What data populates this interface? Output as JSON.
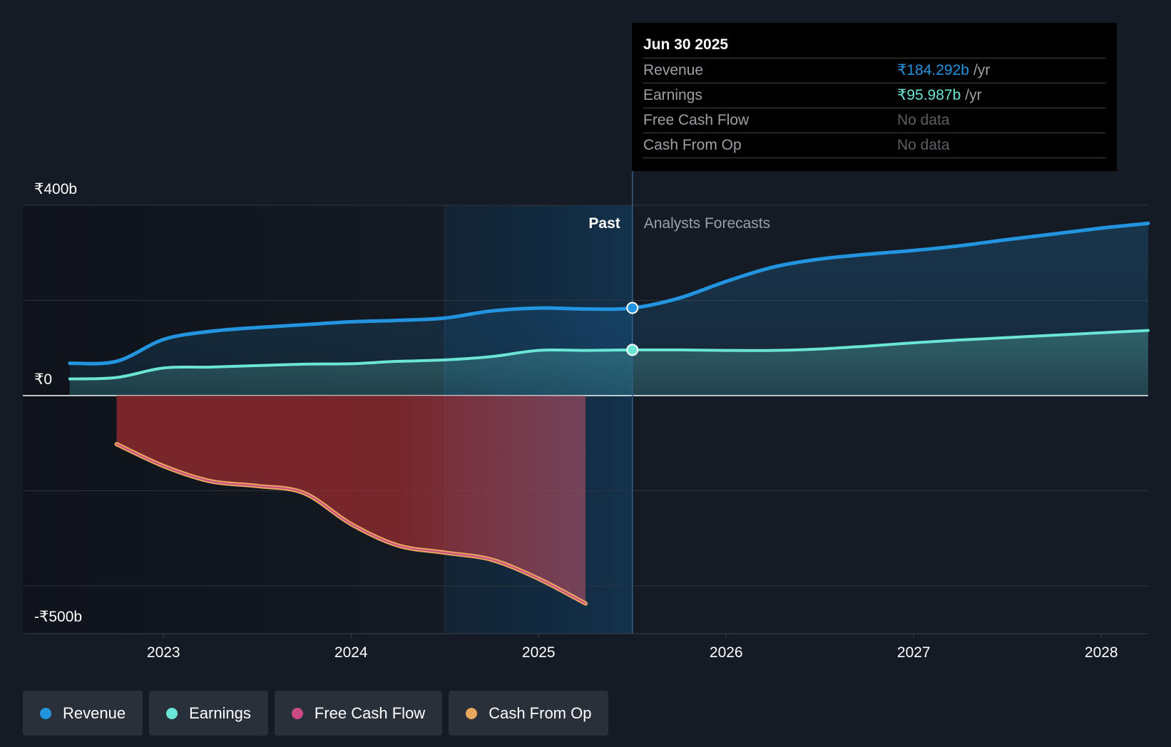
{
  "tooltip": {
    "date": "Jun 30 2025",
    "rows": [
      {
        "label": "Revenue",
        "value": "₹184.292b",
        "unit": "/yr",
        "color": "#2394df"
      },
      {
        "label": "Earnings",
        "value": "₹95.987b",
        "unit": "/yr",
        "color": "#6be6d6"
      },
      {
        "label": "Free Cash Flow",
        "value": "No data",
        "unit": "",
        "color": ""
      },
      {
        "label": "Cash From Op",
        "value": "No data",
        "unit": "",
        "color": ""
      }
    ]
  },
  "legend": [
    {
      "label": "Revenue",
      "color": "#2394df"
    },
    {
      "label": "Earnings",
      "color": "#6be6d6"
    },
    {
      "label": "Free Cash Flow",
      "color": "#c94a87"
    },
    {
      "label": "Cash From Op",
      "color": "#e8a75d"
    }
  ],
  "chart_data": {
    "type": "area",
    "title": "",
    "y_labels": {
      "top": "₹400b",
      "zero": "₹0",
      "bottom": "-₹500b"
    },
    "ylim": [
      -500,
      400
    ],
    "xlim": [
      2022.25,
      2028.25
    ],
    "x_ticks": [
      {
        "value": 2023,
        "label": "2023"
      },
      {
        "value": 2024,
        "label": "2024"
      },
      {
        "value": 2025,
        "label": "2025"
      },
      {
        "value": 2026,
        "label": "2026"
      },
      {
        "value": 2027,
        "label": "2027"
      },
      {
        "value": 2028,
        "label": "2028"
      }
    ],
    "gridlines": [
      400,
      200,
      0,
      -200,
      -400
    ],
    "highlight_start": 2024.5,
    "divider": 2025.5,
    "past_label": "Past",
    "forecast_label": "Analysts Forecasts",
    "series": [
      {
        "name": "Revenue",
        "color": "#2394df",
        "x": [
          2022.5,
          2022.75,
          2023.0,
          2023.25,
          2023.5,
          2023.75,
          2024.0,
          2024.25,
          2024.5,
          2024.75,
          2025.0,
          2025.25,
          2025.5,
          2025.75,
          2026.0,
          2026.25,
          2026.5,
          2026.75,
          2027.0,
          2027.25,
          2027.5,
          2027.75,
          2028.0,
          2028.25
        ],
        "y": [
          68,
          72,
          118,
          135,
          143,
          149,
          155,
          158,
          163,
          178,
          184,
          182,
          184,
          205,
          240,
          270,
          287,
          297,
          305,
          315,
          328,
          340,
          352,
          362
        ]
      },
      {
        "name": "Earnings",
        "color": "#6be6d6",
        "x": [
          2022.5,
          2022.75,
          2023.0,
          2023.25,
          2023.5,
          2023.75,
          2024.0,
          2024.25,
          2024.5,
          2024.75,
          2025.0,
          2025.25,
          2025.5,
          2025.75,
          2026.0,
          2026.25,
          2026.5,
          2026.75,
          2027.0,
          2027.25,
          2027.5,
          2027.75,
          2028.0,
          2028.25
        ],
        "y": [
          35,
          38,
          58,
          60,
          63,
          66,
          67,
          72,
          75,
          82,
          95,
          95,
          96,
          96,
          95,
          95,
          98,
          104,
          111,
          117,
          122,
          127,
          132,
          137
        ]
      },
      {
        "name": "Free Cash Flow",
        "color": "#c94a87",
        "x": [
          2022.75,
          2023.0,
          2023.25,
          2023.5,
          2023.75,
          2024.0,
          2024.25,
          2024.5,
          2024.75,
          2025.0,
          2025.25
        ],
        "y": [
          -102,
          -148,
          -180,
          -190,
          -205,
          -270,
          -315,
          -330,
          -345,
          -385,
          -437
        ]
      },
      {
        "name": "Cash From Op",
        "color": "#e8a75d",
        "x": [
          2022.75,
          2023.0,
          2023.25,
          2023.5,
          2023.75,
          2024.0,
          2024.25,
          2024.5,
          2024.75,
          2025.0,
          2025.25
        ],
        "y": [
          -102,
          -148,
          -180,
          -190,
          -205,
          -270,
          -315,
          -330,
          -345,
          -385,
          -437
        ]
      }
    ],
    "markers": [
      {
        "series": "Revenue",
        "x": 2025.5,
        "y": 184.292
      },
      {
        "series": "Earnings",
        "x": 2025.5,
        "y": 95.987
      }
    ]
  }
}
